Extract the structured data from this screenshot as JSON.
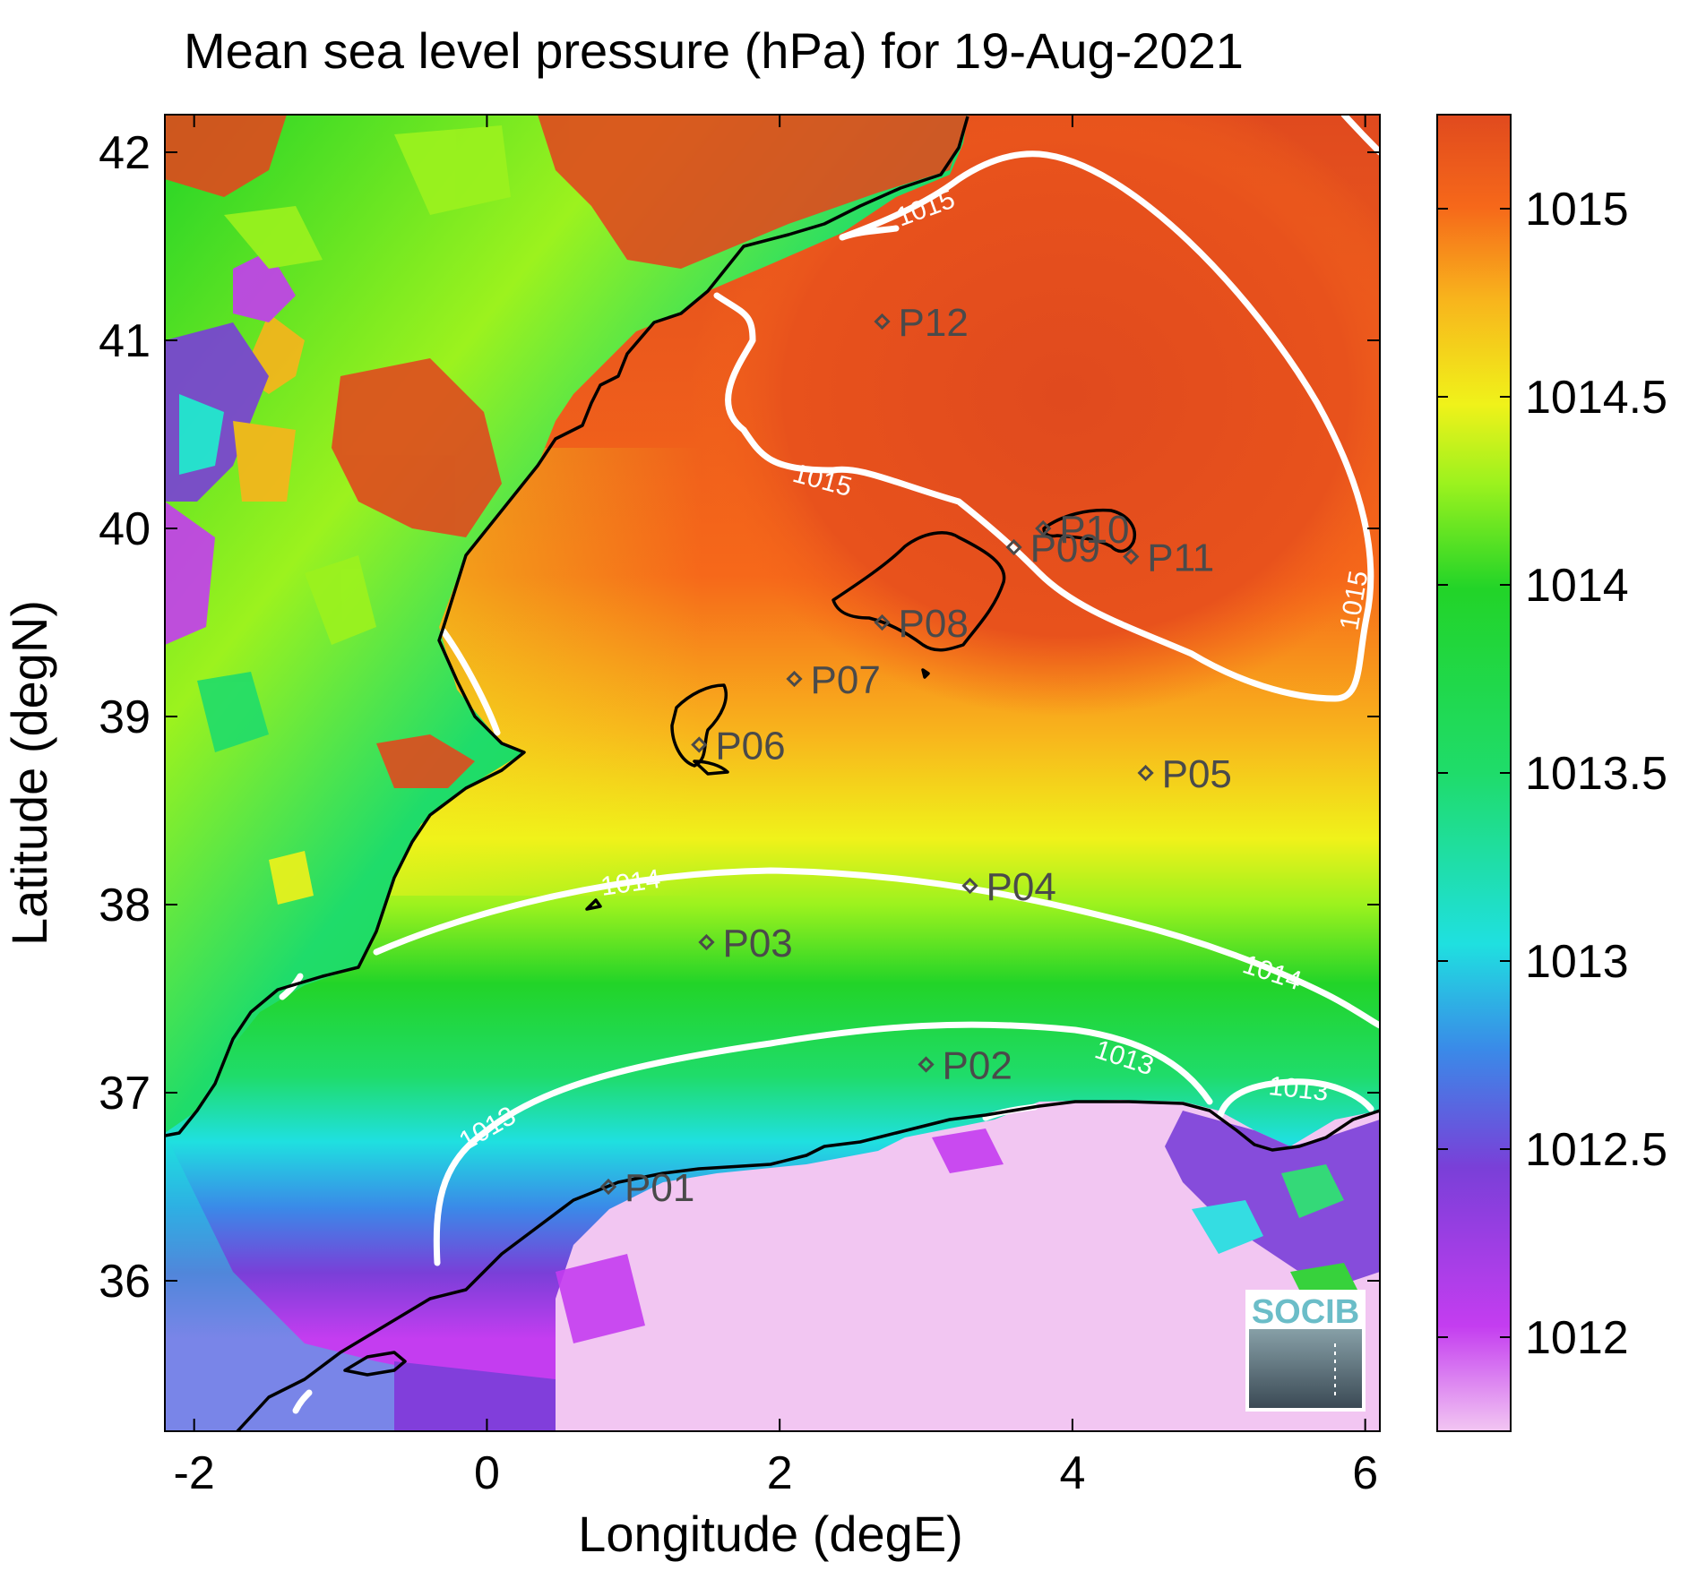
{
  "title": "Mean sea level pressure (hPa) for 19-Aug-2021",
  "xlabel": "Longitude (degE)",
  "ylabel": "Latitude (degN)",
  "logo_text": "SOCIB",
  "chart_data": {
    "type": "heatmap",
    "title": "Mean sea level pressure (hPa) for 19-Aug-2021",
    "xlabel": "Longitude (degE)",
    "ylabel": "Latitude (degN)",
    "xlim": [
      -2.2,
      6.1
    ],
    "ylim": [
      35.2,
      42.2
    ],
    "x_ticks": [
      -2,
      0,
      2,
      4,
      6
    ],
    "y_ticks": [
      36,
      37,
      38,
      39,
      40,
      41,
      42
    ],
    "x_tick_labels": [
      "-2",
      "0",
      "2",
      "4",
      "6"
    ],
    "y_tick_labels": [
      "36",
      "37",
      "38",
      "39",
      "40",
      "41",
      "42"
    ],
    "colorbar": {
      "label": "",
      "range": [
        1011.75,
        1015.25
      ],
      "ticks": [
        1012,
        1012.5,
        1013,
        1013.5,
        1014,
        1014.5,
        1015
      ],
      "tick_labels": [
        "1012",
        "1012.5",
        "1013",
        "1013.5",
        "1014",
        "1014.5",
        "1015"
      ],
      "colors": [
        "#f2c6f2",
        "#c43df0",
        "#7a3fd8",
        "#3a8ae8",
        "#1fe0e0",
        "#1fdc6a",
        "#22d428",
        "#9cf21e",
        "#f0f21a",
        "#f8b41c",
        "#f6681a",
        "#e04a1e"
      ]
    },
    "contour_levels": [
      {
        "level": "1013",
        "labels": 3
      },
      {
        "level": "1014",
        "labels": 2
      },
      {
        "level": "1015",
        "labels": 3
      }
    ],
    "stations": [
      {
        "name": "P01",
        "lon": 0.83,
        "lat": 36.5
      },
      {
        "name": "P02",
        "lon": 3.0,
        "lat": 37.15
      },
      {
        "name": "P03",
        "lon": 1.5,
        "lat": 37.8
      },
      {
        "name": "P04",
        "lon": 3.3,
        "lat": 38.1
      },
      {
        "name": "P05",
        "lon": 4.5,
        "lat": 38.7
      },
      {
        "name": "P06",
        "lon": 1.45,
        "lat": 38.85
      },
      {
        "name": "P07",
        "lon": 2.1,
        "lat": 39.2
      },
      {
        "name": "P08",
        "lon": 2.7,
        "lat": 39.5
      },
      {
        "name": "P09",
        "lon": 3.6,
        "lat": 39.9
      },
      {
        "name": "P10",
        "lon": 3.8,
        "lat": 40.0
      },
      {
        "name": "P11",
        "lon": 4.4,
        "lat": 39.85
      },
      {
        "name": "P12",
        "lon": 2.7,
        "lat": 41.1
      }
    ]
  }
}
